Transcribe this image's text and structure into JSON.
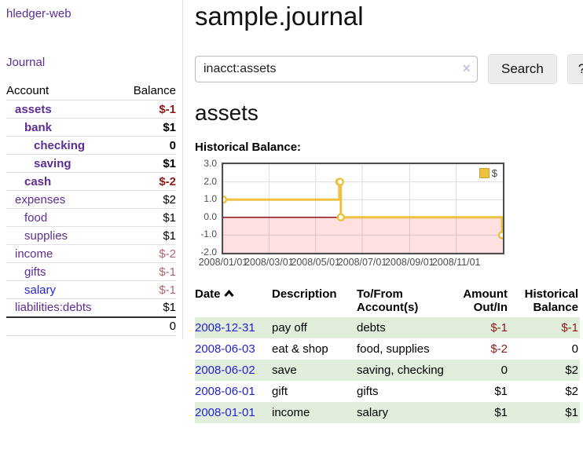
{
  "brand": "hledger-web",
  "sidebar": {
    "journal_link": "Journal",
    "accounts": {
      "header_account": "Account",
      "header_balance": "Balance",
      "rows": [
        {
          "name": "assets",
          "balance": "$-1"
        },
        {
          "name": "bank",
          "balance": "$1"
        },
        {
          "name": "checking",
          "balance": "0"
        },
        {
          "name": "saving",
          "balance": "$1"
        },
        {
          "name": "cash",
          "balance": "$-2"
        },
        {
          "name": "expenses",
          "balance": "$2"
        },
        {
          "name": "food",
          "balance": "$1"
        },
        {
          "name": "supplies",
          "balance": "$1"
        },
        {
          "name": "income",
          "balance": "$-2"
        },
        {
          "name": "gifts",
          "balance": "$-1"
        },
        {
          "name": "salary",
          "balance": "$-1"
        },
        {
          "name": "liabilities:debts",
          "balance": "$1"
        }
      ],
      "total": "0"
    }
  },
  "main": {
    "title": "sample.journal",
    "search": {
      "value": "inacct:assets",
      "clear_icon": "×",
      "search_button": "Search",
      "help_button": "?"
    },
    "account_heading": "assets",
    "chart_label": "Historical Balance:",
    "register": {
      "headers": {
        "date": "Date",
        "description": "Description",
        "accounts": "To/From Account(s)",
        "amount": "Amount Out/In",
        "balance": "Historical Balance"
      },
      "rows": [
        {
          "date": "2008-12-31",
          "description": "pay off",
          "accounts": "debts",
          "amount": "$-1",
          "balance": "$-1"
        },
        {
          "date": "2008-06-03",
          "description": "eat & shop",
          "accounts": "food, supplies",
          "amount": "$-2",
          "balance": "0"
        },
        {
          "date": "2008-06-02",
          "description": "save",
          "accounts": "saving, checking",
          "amount": "0",
          "balance": "$2"
        },
        {
          "date": "2008-06-01",
          "description": "gift",
          "accounts": "gifts",
          "amount": "$1",
          "balance": "$2"
        },
        {
          "date": "2008-01-01",
          "description": "income",
          "accounts": "salary",
          "amount": "$1",
          "balance": "$1"
        }
      ]
    }
  },
  "chart_data": {
    "type": "line",
    "step": true,
    "title": "Historical Balance",
    "legend_label": "$",
    "legend_position": "top-right",
    "grid": true,
    "xrange": [
      "2008-01-01",
      "2009-01-01"
    ],
    "ylim": [
      -2,
      3
    ],
    "yticks": [
      "3.0",
      "2.0",
      "1.0",
      "0.0",
      "-1.0",
      "-2.0"
    ],
    "xticks": [
      {
        "label": "2008/01/01",
        "date": "2008-01-01"
      },
      {
        "label": "2008/03/01",
        "date": "2008-03-01"
      },
      {
        "label": "2008/05/01",
        "date": "2008-05-01"
      },
      {
        "label": "2008/07/01",
        "date": "2008-07-01"
      },
      {
        "label": "2008/09/01",
        "date": "2008-09-01"
      },
      {
        "label": "2008/11/01",
        "date": "2008-11-01"
      }
    ],
    "series": [
      {
        "name": "$",
        "color": "#edc240",
        "points": [
          {
            "date": "2008-01-01",
            "value": 1
          },
          {
            "date": "2008-06-01",
            "value": 2
          },
          {
            "date": "2008-06-02",
            "value": 2
          },
          {
            "date": "2008-06-03",
            "value": 0
          },
          {
            "date": "2008-12-31",
            "value": -1
          }
        ]
      }
    ],
    "zero_line_color": "#8b0000",
    "negative_region_color": "rgba(255,0,0,0.12)",
    "gridline_color": "#dcdcdc"
  }
}
